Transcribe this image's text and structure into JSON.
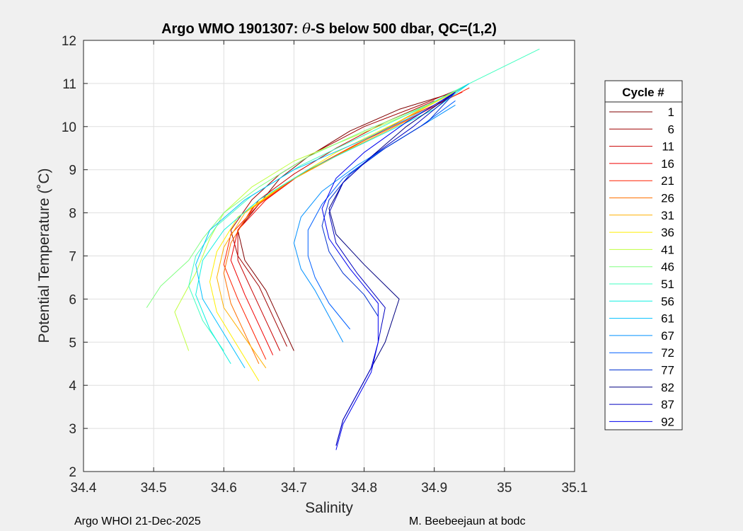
{
  "chart_data": {
    "type": "line",
    "title_prefix": "Argo WMO 1901307: ",
    "title_symbol": "θ",
    "title_suffix": "-S below 500 dbar,  QC=(1,2)",
    "xlabel": "Salinity",
    "ylabel": "Potential Temperature (˚C)",
    "xlim": [
      34.4,
      35.1
    ],
    "ylim": [
      2,
      12
    ],
    "x_ticks": [
      "34.4",
      "34.5",
      "34.6",
      "34.7",
      "34.8",
      "34.9",
      "35",
      "35.1"
    ],
    "y_ticks": [
      "2",
      "3",
      "4",
      "5",
      "6",
      "7",
      "8",
      "9",
      "10",
      "11",
      "12"
    ],
    "grid": true,
    "legend": {
      "title": "Cycle #",
      "placement": "outside-right",
      "entries": [
        {
          "label": "1",
          "color": "#800000"
        },
        {
          "label": "6",
          "color": "#a00000"
        },
        {
          "label": "11",
          "color": "#c80000"
        },
        {
          "label": "16",
          "color": "#f00000"
        },
        {
          "label": "21",
          "color": "#ff2000"
        },
        {
          "label": "26",
          "color": "#ff7000"
        },
        {
          "label": "31",
          "color": "#ffb000"
        },
        {
          "label": "36",
          "color": "#ffef00"
        },
        {
          "label": "41",
          "color": "#c0ff40"
        },
        {
          "label": "46",
          "color": "#80ff80"
        },
        {
          "label": "51",
          "color": "#40ffc0"
        },
        {
          "label": "56",
          "color": "#10f0e0"
        },
        {
          "label": "61",
          "color": "#00c0ff"
        },
        {
          "label": "67",
          "color": "#0090ff"
        },
        {
          "label": "72",
          "color": "#0060ff"
        },
        {
          "label": "77",
          "color": "#0030d0"
        },
        {
          "label": "82",
          "color": "#000080"
        },
        {
          "label": "87",
          "color": "#0000c0"
        },
        {
          "label": "92",
          "color": "#0000f0"
        }
      ]
    },
    "series": [
      {
        "name": "1",
        "x": [
          34.7,
          34.68,
          34.66,
          34.63,
          34.62,
          34.65,
          34.68,
          34.72,
          34.78,
          34.85,
          34.93
        ],
        "y": [
          4.8,
          5.5,
          6.2,
          6.9,
          7.6,
          8.2,
          8.8,
          9.3,
          9.9,
          10.4,
          10.8
        ]
      },
      {
        "name": "6",
        "x": [
          34.69,
          34.67,
          34.65,
          34.62,
          34.61,
          34.64,
          34.68,
          34.73,
          34.8,
          34.88,
          34.94
        ],
        "y": [
          4.9,
          5.6,
          6.3,
          7.0,
          7.6,
          8.3,
          8.9,
          9.4,
          10.0,
          10.5,
          10.9
        ]
      },
      {
        "name": "11",
        "x": [
          34.68,
          34.66,
          34.64,
          34.62,
          34.62,
          34.65,
          34.7,
          34.76,
          34.83,
          34.9
        ],
        "y": [
          4.8,
          5.5,
          6.2,
          6.9,
          7.6,
          8.3,
          8.9,
          9.5,
          10.1,
          10.6
        ]
      },
      {
        "name": "16",
        "x": [
          34.67,
          34.65,
          34.63,
          34.61,
          34.62,
          34.66,
          34.71,
          34.78,
          34.86,
          34.94
        ],
        "y": [
          4.7,
          5.4,
          6.1,
          6.9,
          7.6,
          8.3,
          8.9,
          9.5,
          10.2,
          10.8
        ]
      },
      {
        "name": "21",
        "x": [
          34.66,
          34.64,
          34.62,
          34.6,
          34.61,
          34.65,
          34.71,
          34.79,
          34.88,
          34.95
        ],
        "y": [
          4.6,
          5.3,
          6.0,
          6.8,
          7.5,
          8.2,
          8.9,
          9.6,
          10.3,
          10.9
        ]
      },
      {
        "name": "26",
        "x": [
          34.65,
          34.63,
          34.61,
          34.6,
          34.61,
          34.64,
          34.7,
          34.78,
          34.87,
          34.94
        ],
        "y": [
          4.5,
          5.2,
          5.9,
          6.6,
          7.3,
          8.1,
          8.8,
          9.5,
          10.3,
          10.9
        ]
      },
      {
        "name": "31",
        "x": [
          34.66,
          34.63,
          34.6,
          34.59,
          34.6,
          34.63,
          34.69,
          34.77,
          34.87,
          34.94
        ],
        "y": [
          4.4,
          5.1,
          5.8,
          6.5,
          7.2,
          8.0,
          8.7,
          9.4,
          10.2,
          10.9
        ]
      },
      {
        "name": "36",
        "x": [
          34.65,
          34.62,
          34.59,
          34.58,
          34.59,
          34.62,
          34.68,
          34.76,
          34.86,
          34.94
        ],
        "y": [
          4.1,
          4.9,
          5.7,
          6.4,
          7.1,
          7.9,
          8.6,
          9.4,
          10.2,
          10.9
        ]
      },
      {
        "name": "41",
        "x": [
          34.55,
          34.53,
          34.56,
          34.58,
          34.6,
          34.64,
          34.7,
          34.79,
          34.88,
          34.95
        ],
        "y": [
          4.8,
          5.7,
          6.6,
          7.4,
          8.0,
          8.6,
          9.2,
          9.8,
          10.4,
          11.0
        ]
      },
      {
        "name": "46",
        "x": [
          34.49,
          34.51,
          34.55,
          34.57,
          34.6,
          34.65,
          34.72,
          34.8,
          34.89,
          34.95
        ],
        "y": [
          5.8,
          6.3,
          6.9,
          7.4,
          8.0,
          8.6,
          9.3,
          9.9,
          10.5,
          11.0
        ]
      },
      {
        "name": "51",
        "x": [
          34.6,
          34.57,
          34.55,
          34.56,
          34.59,
          34.64,
          34.71,
          34.8,
          34.89,
          34.95,
          35.05
        ],
        "y": [
          4.8,
          5.5,
          6.3,
          7.0,
          7.7,
          8.4,
          9.1,
          9.8,
          10.5,
          11.0,
          11.8
        ]
      },
      {
        "name": "56",
        "x": [
          34.61,
          34.58,
          34.56,
          34.57,
          34.6,
          34.65,
          34.72,
          34.81,
          34.9,
          34.95
        ],
        "y": [
          4.5,
          5.3,
          6.1,
          6.9,
          7.6,
          8.3,
          9.0,
          9.7,
          10.4,
          11.0
        ]
      },
      {
        "name": "61",
        "x": [
          34.63,
          34.6,
          34.57,
          34.56,
          34.58,
          34.63,
          34.7,
          34.8,
          34.89,
          34.95
        ],
        "y": [
          4.4,
          5.2,
          6.0,
          6.8,
          7.6,
          8.3,
          9.0,
          9.7,
          10.4,
          11.0
        ]
      },
      {
        "name": "67",
        "x": [
          34.77,
          34.75,
          34.73,
          34.71,
          34.7,
          34.71,
          34.74,
          34.79,
          34.86,
          34.93
        ],
        "y": [
          5.0,
          5.6,
          6.2,
          6.7,
          7.3,
          7.9,
          8.5,
          9.1,
          9.8,
          10.5
        ]
      },
      {
        "name": "72",
        "x": [
          34.78,
          34.75,
          34.73,
          34.72,
          34.72,
          34.74,
          34.77,
          34.82,
          34.88,
          34.93
        ],
        "y": [
          5.3,
          5.9,
          6.5,
          7.0,
          7.6,
          8.2,
          8.8,
          9.4,
          10.0,
          10.6
        ]
      },
      {
        "name": "77",
        "x": [
          34.82,
          34.8,
          34.77,
          34.75,
          34.74,
          34.75,
          34.78,
          34.83,
          34.89,
          34.93
        ],
        "y": [
          5.6,
          6.1,
          6.6,
          7.1,
          7.7,
          8.3,
          8.9,
          9.5,
          10.1,
          10.8
        ]
      },
      {
        "name": "82",
        "x": [
          34.76,
          34.77,
          34.79,
          34.81,
          34.83,
          34.85,
          34.8,
          34.76,
          34.75,
          34.77,
          34.81,
          34.86,
          34.93
        ],
        "y": [
          2.6,
          3.2,
          3.8,
          4.4,
          5.0,
          6.0,
          6.8,
          7.5,
          8.1,
          8.7,
          9.3,
          10.0,
          10.8
        ]
      },
      {
        "name": "87",
        "x": [
          34.76,
          34.77,
          34.79,
          34.81,
          34.82,
          34.83,
          34.79,
          34.76,
          34.75,
          34.77,
          34.81,
          34.87,
          34.93
        ],
        "y": [
          2.6,
          3.2,
          3.8,
          4.4,
          5.0,
          5.8,
          6.6,
          7.3,
          8.0,
          8.7,
          9.3,
          10.0,
          10.8
        ]
      },
      {
        "name": "92",
        "x": [
          34.76,
          34.77,
          34.79,
          34.81,
          34.82,
          34.82,
          34.78,
          34.75,
          34.74,
          34.76,
          34.8,
          34.86,
          34.93
        ],
        "y": [
          2.5,
          3.1,
          3.7,
          4.3,
          5.0,
          5.9,
          6.7,
          7.4,
          8.1,
          8.8,
          9.4,
          10.1,
          10.8
        ]
      }
    ]
  },
  "footer": {
    "left": "Argo WHOI 21-Dec-2025",
    "right": "M. Beebeejaun at bodc"
  }
}
